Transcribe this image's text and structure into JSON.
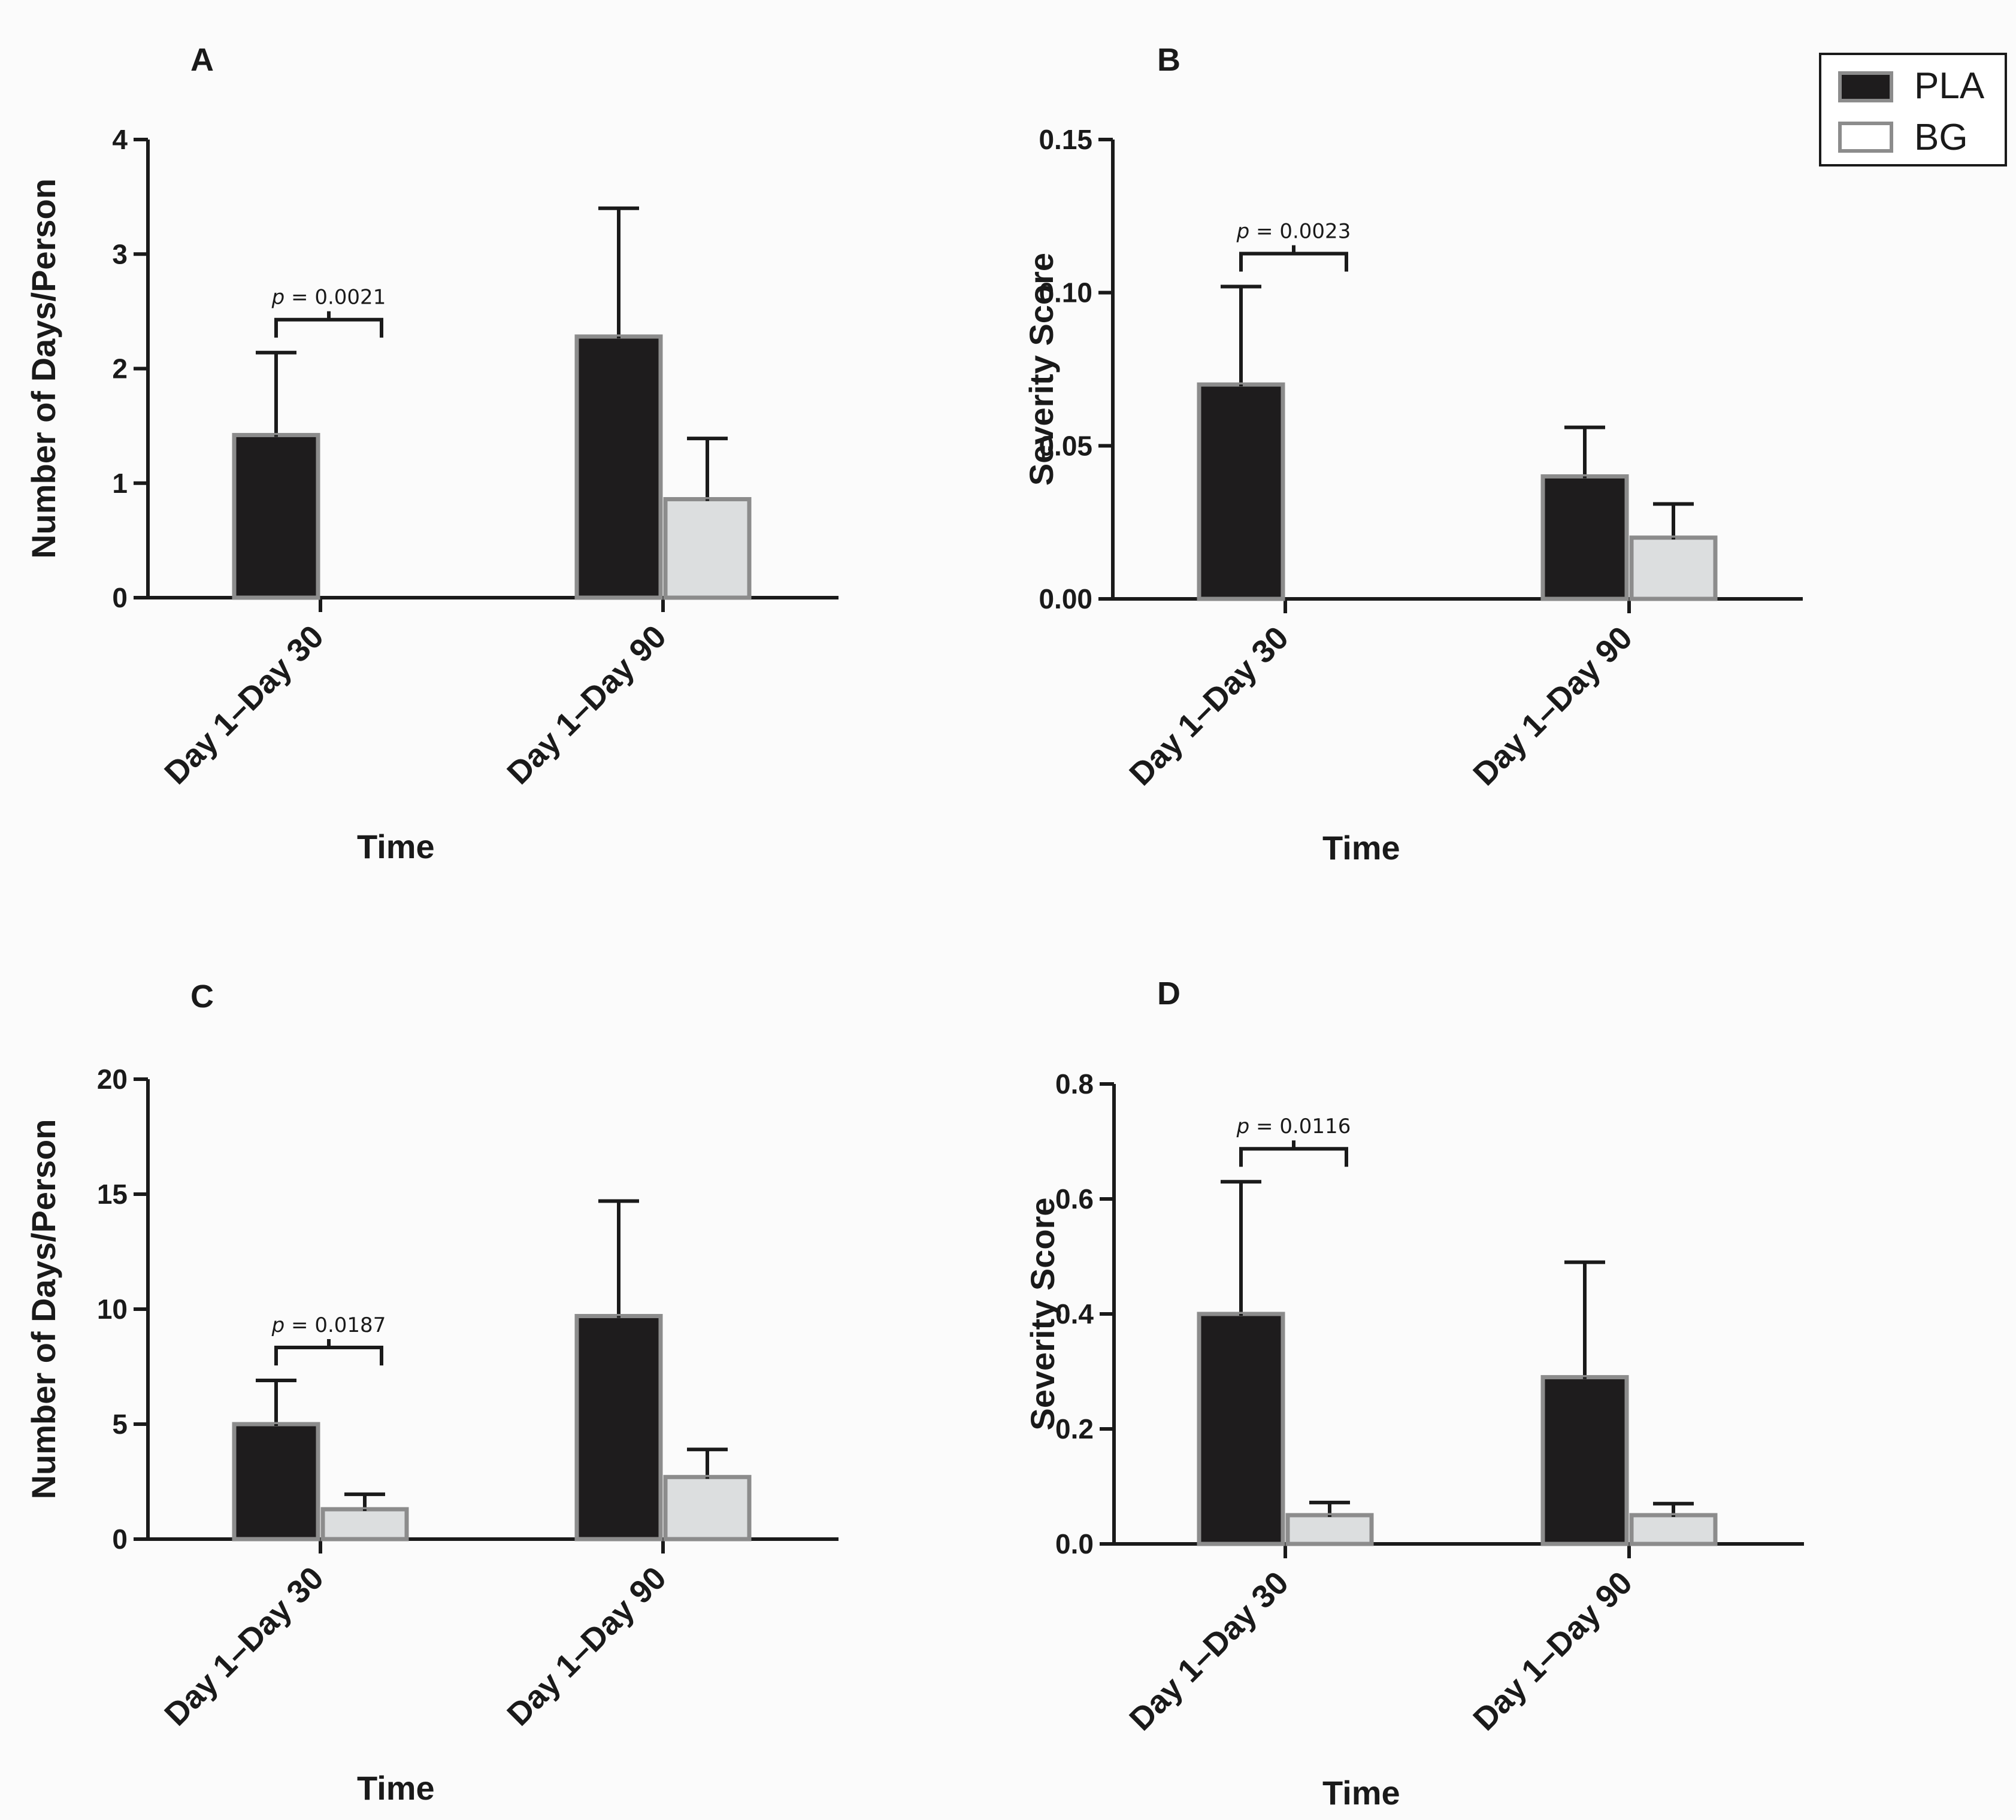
{
  "legend": {
    "entries": [
      {
        "name": "PLA",
        "fill": "#1e1c1d",
        "stroke": "#8c8c8c"
      },
      {
        "name": "BG",
        "fill": "#dcdedf",
        "stroke": "#8c8c8c"
      }
    ]
  },
  "chart_data": [
    {
      "panel": "A",
      "type": "bar",
      "xlabel": "Time",
      "ylabel": "Number of Days/Person",
      "ylim": [
        0,
        4
      ],
      "yticks": [
        "0",
        "1",
        "2",
        "3",
        "4"
      ],
      "categories": [
        "Day 1–Day 30",
        "Day 1–Day 90"
      ],
      "series": [
        {
          "name": "PLA",
          "values": [
            1.42,
            2.28
          ],
          "errors": [
            0.72,
            1.12
          ]
        },
        {
          "name": "BG",
          "values": [
            0,
            0.86
          ],
          "errors": [
            0,
            0.53
          ]
        }
      ],
      "annotation": {
        "label": "p = 0.0021",
        "category_index": 0
      }
    },
    {
      "panel": "B",
      "type": "bar",
      "xlabel": "Time",
      "ylabel": "Severity Score",
      "ylim": [
        0,
        0.15
      ],
      "yticks": [
        "0.00",
        "0.05",
        "0.10",
        "0.15"
      ],
      "categories": [
        "Day 1–Day 30",
        "Day 1–Day 90"
      ],
      "series": [
        {
          "name": "PLA",
          "values": [
            0.07,
            0.04
          ],
          "errors": [
            0.032,
            0.016
          ]
        },
        {
          "name": "BG",
          "values": [
            0,
            0.02
          ],
          "errors": [
            0,
            0.011
          ]
        }
      ],
      "annotation": {
        "label": "p = 0.0023",
        "category_index": 0
      }
    },
    {
      "panel": "C",
      "type": "bar",
      "xlabel": "Time",
      "ylabel": "Number of Days/Person",
      "ylim": [
        0,
        20
      ],
      "yticks": [
        "0",
        "5",
        "10",
        "15",
        "20"
      ],
      "categories": [
        "Day 1–Day 30",
        "Day 1–Day 90"
      ],
      "series": [
        {
          "name": "PLA",
          "values": [
            5.0,
            9.7
          ],
          "errors": [
            1.9,
            5.0
          ]
        },
        {
          "name": "BG",
          "values": [
            1.3,
            2.7
          ],
          "errors": [
            0.65,
            1.2
          ]
        }
      ],
      "annotation": {
        "label": "p = 0.0187",
        "category_index": 0
      }
    },
    {
      "panel": "D",
      "type": "bar",
      "xlabel": "Time",
      "ylabel": "Severity Score",
      "ylim": [
        0,
        0.8
      ],
      "yticks": [
        "0.0",
        "0.2",
        "0.4",
        "0.6",
        "0.8"
      ],
      "categories": [
        "Day 1–Day 30",
        "Day 1–Day 90"
      ],
      "series": [
        {
          "name": "PLA",
          "values": [
            0.4,
            0.29
          ],
          "errors": [
            0.23,
            0.2
          ]
        },
        {
          "name": "BG",
          "values": [
            0.05,
            0.05
          ],
          "errors": [
            0.022,
            0.02
          ]
        }
      ],
      "annotation": {
        "label": "p = 0.0116",
        "category_index": 0
      }
    }
  ]
}
